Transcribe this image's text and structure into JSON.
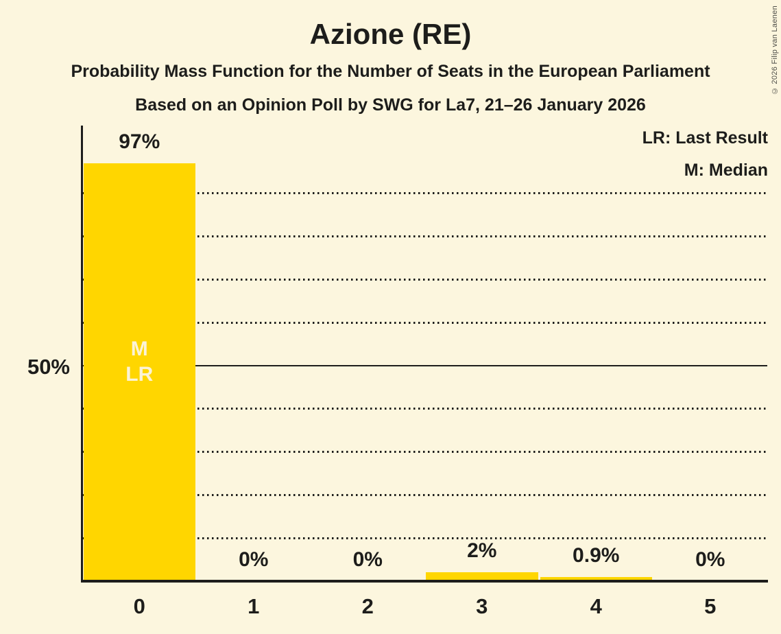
{
  "header": {
    "title": "Azione (RE)",
    "subtitle1": "Probability Mass Function for the Number of Seats in the European Parliament",
    "subtitle2": "Based on an Opinion Poll by SWG for La7, 21–26 January 2026"
  },
  "legend": {
    "lr": "LR: Last Result",
    "m": "M: Median"
  },
  "y_axis": {
    "label": "50%"
  },
  "copyright": "© 2026 Filip van Laenen",
  "chart_data": {
    "type": "bar",
    "title": "Azione (RE)",
    "subtitle": "Probability Mass Function for the Number of Seats in the European Parliament",
    "source_line": "Based on an Opinion Poll by SWG for La7, 21–26 January 2026",
    "xlabel": "Number of seats",
    "ylabel": "Probability",
    "categories": [
      "0",
      "1",
      "2",
      "3",
      "4",
      "5"
    ],
    "values": [
      97,
      0,
      0,
      2,
      0.9,
      0
    ],
    "value_labels": [
      "97%",
      "0%",
      "0%",
      "2%",
      "0.9%",
      "0%"
    ],
    "ylim": [
      0,
      105.7
    ],
    "gridlines_pct": [
      10,
      20,
      30,
      40,
      60,
      70,
      80,
      90
    ],
    "solid_line_pct": 50,
    "y_tick_labels": [
      {
        "pct": 50,
        "label": "50%"
      }
    ],
    "legend_position": "top-right",
    "legend_entries": [
      "LR: Last Result",
      "M: Median"
    ],
    "median_bar_index": 0,
    "last_result_bar_index": 0,
    "bar_annotations": [
      {
        "bar": 0,
        "lines": [
          "M",
          "LR"
        ]
      }
    ],
    "colors": {
      "bar": "#ffd600",
      "background": "#fcf6de",
      "text": "#1d1d1b",
      "bar_annotation_text": "#fbf3d7"
    }
  }
}
